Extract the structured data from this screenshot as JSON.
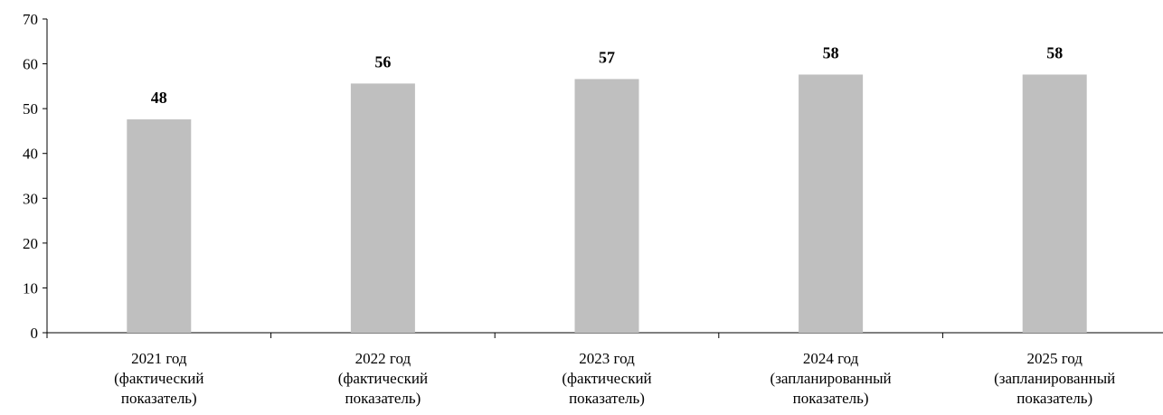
{
  "chart_data": {
    "type": "bar",
    "categories": [
      [
        "2021 год",
        "(фактический",
        "показатель)"
      ],
      [
        "2022 год",
        "(фактический",
        "показатель)"
      ],
      [
        "2023 год",
        "(фактический",
        "показатель)"
      ],
      [
        "2024 год",
        "(запланированный",
        "показатель)"
      ],
      [
        "2025 год",
        "(запланированный",
        "показатель)"
      ]
    ],
    "values": [
      48,
      56,
      57,
      58,
      58
    ],
    "plotted_values": [
      47.6,
      55.6,
      56.6,
      57.6,
      57.6
    ],
    "title": "",
    "xlabel": "",
    "ylabel": "",
    "ylim": [
      0,
      70
    ],
    "yticks": [
      0,
      10,
      20,
      30,
      40,
      50,
      60,
      70
    ],
    "grid": false,
    "legend": "none",
    "colors": {
      "bar": "#bfbfbf",
      "axis": "#000000",
      "text": "#000000"
    }
  }
}
